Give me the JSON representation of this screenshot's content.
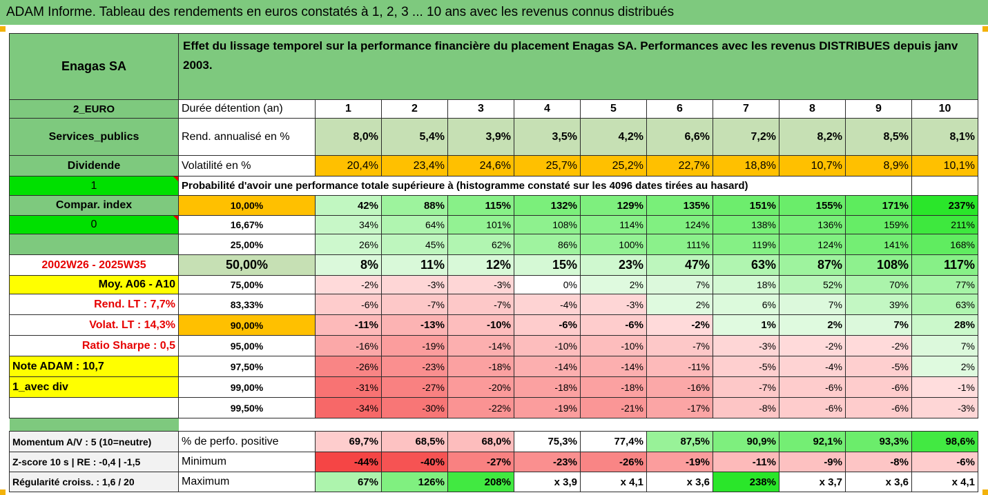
{
  "title": "ADAM Informe. Tableau des rendements en euros constatés à 1, 2, 3 ... 10 ans avec les revenus connus distribués",
  "colors": {
    "green_header": "#7ec97e",
    "light_green": "#c6e0b4",
    "orange": "#ffc000",
    "lime": "#00e000",
    "yellow": "#ffff00",
    "red_text": "#e60000"
  },
  "company": "Enagas SA",
  "description": "Effet du lissage temporel sur la performance financière du placement Enagas SA. Performances avec les revenus DISTRIBUES depuis janv 2003.",
  "sidebar": {
    "currency": "2_EURO",
    "sector": "Services_publics",
    "dividend": "Dividende",
    "one": "1",
    "compar_index": "Compar. index",
    "zero": "0",
    "period": "2002W26 - 2025W35",
    "moy": "Moy. A06 - A10",
    "rend_lt": "Rend. LT :   7,7%",
    "volat_lt": "Volat. LT :   14,3%",
    "sharpe": "Ratio Sharpe :   0,5",
    "note": "Note ADAM : 10,7",
    "avec_div": "1_avec div"
  },
  "header_row": {
    "label": "Durée détention (an)",
    "years": [
      "1",
      "2",
      "3",
      "4",
      "5",
      "6",
      "7",
      "8",
      "9",
      "10"
    ]
  },
  "rend_row": {
    "label": "Rend. annualisé en %",
    "values": [
      "8,0%",
      "5,4%",
      "3,9%",
      "3,5%",
      "4,2%",
      "6,6%",
      "7,2%",
      "8,2%",
      "8,5%",
      "8,1%"
    ]
  },
  "vol_row": {
    "label": "Volatilité en %",
    "values": [
      "20,4%",
      "23,4%",
      "24,6%",
      "25,7%",
      "25,2%",
      "22,7%",
      "18,8%",
      "10,7%",
      "8,9%",
      "10,1%"
    ]
  },
  "prob_header": "Probabilité d'avoir une performance totale supérieure à (histogramme constaté sur les 4096 dates tirées au hasard)",
  "prob_rows": [
    {
      "pct": "10,00%",
      "values": [
        "42%",
        "88%",
        "115%",
        "132%",
        "129%",
        "135%",
        "151%",
        "155%",
        "171%",
        "237%"
      ]
    },
    {
      "pct": "16,67%",
      "values": [
        "34%",
        "64%",
        "101%",
        "108%",
        "114%",
        "124%",
        "138%",
        "136%",
        "159%",
        "211%"
      ]
    },
    {
      "pct": "25,00%",
      "values": [
        "26%",
        "45%",
        "62%",
        "86%",
        "100%",
        "111%",
        "119%",
        "124%",
        "141%",
        "168%"
      ]
    },
    {
      "pct": "50,00%",
      "values": [
        "8%",
        "11%",
        "12%",
        "15%",
        "23%",
        "47%",
        "63%",
        "87%",
        "108%",
        "117%"
      ]
    },
    {
      "pct": "75,00%",
      "values": [
        "-2%",
        "-3%",
        "-3%",
        "0%",
        "2%",
        "7%",
        "18%",
        "52%",
        "70%",
        "77%"
      ]
    },
    {
      "pct": "83,33%",
      "values": [
        "-6%",
        "-7%",
        "-7%",
        "-4%",
        "-3%",
        "2%",
        "6%",
        "7%",
        "39%",
        "63%"
      ]
    },
    {
      "pct": "90,00%",
      "values": [
        "-11%",
        "-13%",
        "-10%",
        "-6%",
        "-6%",
        "-2%",
        "1%",
        "2%",
        "7%",
        "28%"
      ]
    },
    {
      "pct": "95,00%",
      "values": [
        "-16%",
        "-19%",
        "-14%",
        "-10%",
        "-10%",
        "-7%",
        "-3%",
        "-2%",
        "-2%",
        "7%"
      ]
    },
    {
      "pct": "97,50%",
      "values": [
        "-26%",
        "-23%",
        "-18%",
        "-14%",
        "-14%",
        "-11%",
        "-5%",
        "-4%",
        "-5%",
        "2%"
      ]
    },
    {
      "pct": "99,00%",
      "values": [
        "-31%",
        "-27%",
        "-20%",
        "-18%",
        "-18%",
        "-16%",
        "-7%",
        "-6%",
        "-6%",
        "-1%"
      ]
    },
    {
      "pct": "99,50%",
      "values": [
        "-34%",
        "-30%",
        "-22%",
        "-19%",
        "-21%",
        "-17%",
        "-8%",
        "-6%",
        "-6%",
        "-3%"
      ]
    }
  ],
  "bottom_rows": [
    {
      "left": "Momentum A/V : 5 (10=neutre)",
      "label": "% de perfo. positive",
      "values": [
        "69,7%",
        "68,5%",
        "68,0%",
        "75,3%",
        "77,4%",
        "87,5%",
        "90,9%",
        "92,1%",
        "93,3%",
        "98,6%"
      ]
    },
    {
      "left": "Z-score 10 s  |  RE : -0,4  |  -1,5",
      "label": "Minimum",
      "values": [
        "-44%",
        "-40%",
        "-27%",
        "-23%",
        "-26%",
        "-19%",
        "-11%",
        "-9%",
        "-8%",
        "-6%"
      ]
    },
    {
      "left": "Régularité croiss. : 1,6 / 20",
      "label": "Maximum",
      "values": [
        "67%",
        "126%",
        "208%",
        "x 3,9",
        "x 4,1",
        "x 3,6",
        "238%",
        "x 3,7",
        "x 3,6",
        "x 4,1"
      ]
    }
  ]
}
